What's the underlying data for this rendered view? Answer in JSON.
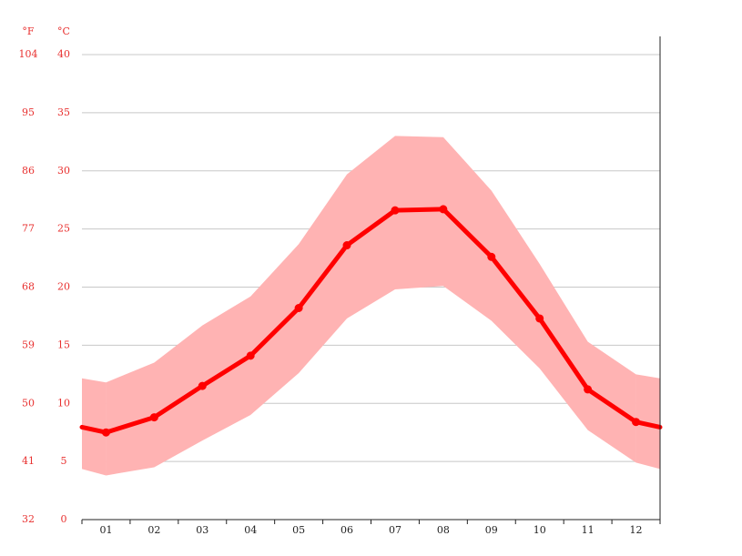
{
  "chart_data": {
    "type": "line",
    "y_unit": "°C",
    "y2_unit": "°F",
    "categories": [
      "01",
      "02",
      "03",
      "04",
      "05",
      "06",
      "07",
      "08",
      "09",
      "10",
      "11",
      "12"
    ],
    "values": [
      7.5,
      8.8,
      11.5,
      14.1,
      18.2,
      23.6,
      26.6,
      26.7,
      22.6,
      17.3,
      11.2,
      8.4
    ],
    "color": "#ff0000",
    "band": {
      "high": [
        11.8,
        13.5,
        16.7,
        19.2,
        23.7,
        29.7,
        33.0,
        32.9,
        28.3,
        22.0,
        15.3,
        12.5
      ],
      "low": [
        3.8,
        4.5,
        6.8,
        9.0,
        12.6,
        17.3,
        19.8,
        20.1,
        17.1,
        13.0,
        7.7,
        4.9
      ],
      "color": "#ffb3b3"
    },
    "ylim": [
      0,
      40
    ],
    "yticks": [
      0,
      5,
      10,
      15,
      20,
      25,
      30,
      35,
      40
    ],
    "y2lim": [
      32,
      104
    ],
    "y2ticks": [
      32,
      41,
      50,
      59,
      68,
      77,
      86,
      95,
      104
    ],
    "grid": true
  }
}
